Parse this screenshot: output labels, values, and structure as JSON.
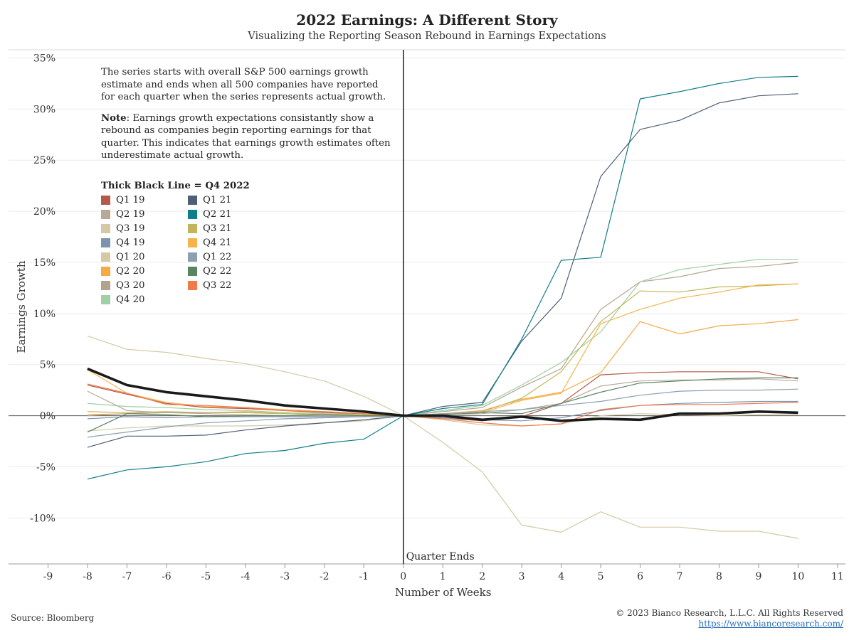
{
  "title": "2022 Earnings: A Different Story",
  "subtitle": "Visualizing the Reporting Season Rebound in Earnings Expectations",
  "note": {
    "para1": "The series starts with overall S&P 500 earnings growth estimate and ends when all 500 companies have reported for each quarter when the series represents actual growth.",
    "note_label": "Note",
    "para2": ": Earnings growth expectations consistantly show a rebound as companies begin reporting earnings for that quarter. This indicates that earnings growth estimates often underestimate actual growth."
  },
  "legend_title": "Thick Black Line = Q4 2022",
  "source": "Source: Bloomberg",
  "copyright": "© 2023 Bianco Research, L.L.C. All Rights Reserved",
  "website": "https://www.biancoresearch.com/",
  "chart_data": {
    "type": "line",
    "xlabel": "Number of Weeks",
    "ylabel": "Earnings Growth",
    "zero_label": "Quarter Ends",
    "xlim": [
      -10,
      11.2
    ],
    "ylim": [
      -14.5,
      35.8
    ],
    "x_ticks": [
      -9,
      -8,
      -7,
      -6,
      -5,
      -4,
      -3,
      -2,
      -1,
      0,
      1,
      2,
      3,
      4,
      5,
      6,
      7,
      8,
      9,
      10,
      11
    ],
    "y_ticks": [
      -10,
      -5,
      0,
      5,
      10,
      15,
      20,
      25,
      30,
      35
    ],
    "y_tick_suffix": "%",
    "legend_position": "top-left",
    "x": [
      -8,
      -7,
      -6,
      -5,
      -4,
      -3,
      -2,
      -1,
      0,
      1,
      2,
      3,
      4,
      5,
      6,
      7,
      8,
      9,
      10
    ],
    "series": [
      {
        "name": "Q1 19",
        "color": "#b5574a",
        "values": [
          3.0,
          2.1,
          1.2,
          0.8,
          0.7,
          0.5,
          0.3,
          0.2,
          0,
          -0.2,
          -0.5,
          -0.1,
          1.2,
          4.0,
          4.2,
          4.3,
          4.3,
          4.3,
          3.6
        ]
      },
      {
        "name": "Q2 19",
        "color": "#b8a898",
        "values": [
          2.4,
          0.5,
          0.3,
          0.2,
          0.1,
          0.0,
          0.0,
          0.0,
          0,
          0.1,
          0.2,
          0.6,
          1.2,
          2.9,
          3.4,
          3.5,
          3.5,
          3.6,
          3.4
        ]
      },
      {
        "name": "Q3 19",
        "color": "#d4c9a4",
        "values": [
          -1.5,
          -1.2,
          -1.0,
          -1.0,
          -1.0,
          -0.9,
          -0.7,
          -0.5,
          0,
          -0.4,
          -0.9,
          -1.0,
          -0.8,
          0.0,
          0.2,
          0.1,
          0.0,
          0.1,
          0.1
        ]
      },
      {
        "name": "Q4 19",
        "color": "#7e94ad",
        "values": [
          -0.3,
          -0.1,
          -0.2,
          -0.1,
          -0.1,
          -0.1,
          -0.1,
          -0.1,
          0,
          -0.2,
          -0.4,
          -0.5,
          -0.2,
          0.5,
          1.0,
          1.2,
          1.3,
          1.4,
          1.4
        ]
      },
      {
        "name": "Q1 20",
        "color": "#d4c9a4",
        "values": [
          7.8,
          6.5,
          6.2,
          5.6,
          5.1,
          4.3,
          3.4,
          1.9,
          0,
          -2.6,
          -5.5,
          -10.7,
          -11.4,
          -9.4,
          -10.9,
          -10.9,
          -11.3,
          -11.3,
          -12.0
        ]
      },
      {
        "name": "Q2 20",
        "color": "#f7a944",
        "values": [
          0.1,
          0.2,
          0.3,
          0.3,
          0.4,
          0.3,
          0.2,
          0.1,
          0,
          0.2,
          0.5,
          1.6,
          2.3,
          4.2,
          9.2,
          8.0,
          8.8,
          9.0,
          9.4
        ]
      },
      {
        "name": "Q3 20",
        "color": "#b4a38c",
        "values": [
          0.0,
          0.2,
          0.3,
          0.3,
          0.3,
          0.2,
          0.1,
          0.0,
          0,
          0.4,
          0.8,
          2.8,
          4.6,
          10.4,
          13.1,
          13.6,
          14.4,
          14.6,
          15.0
        ]
      },
      {
        "name": "Q4 20",
        "color": "#9fcfa4",
        "values": [
          1.2,
          0.9,
          0.8,
          0.6,
          0.5,
          0.3,
          0.2,
          0.1,
          0,
          0.5,
          1.0,
          3.0,
          5.2,
          8.2,
          13.1,
          14.3,
          14.8,
          15.3,
          15.3
        ]
      },
      {
        "name": "Q1 21",
        "color": "#4e5f78",
        "values": [
          -3.1,
          -2.0,
          -2.0,
          -1.9,
          -1.4,
          -1.0,
          -0.7,
          -0.4,
          0,
          0.9,
          1.3,
          7.3,
          11.5,
          23.4,
          28.0,
          28.9,
          30.6,
          31.3,
          31.5
        ]
      },
      {
        "name": "Q2 21",
        "color": "#0e7e88",
        "values": [
          -6.2,
          -5.3,
          -5.0,
          -4.5,
          -3.7,
          -3.4,
          -2.7,
          -2.3,
          0,
          0.7,
          1.1,
          7.5,
          15.2,
          15.5,
          31.0,
          31.7,
          32.5,
          33.1,
          33.2
        ]
      },
      {
        "name": "Q3 21",
        "color": "#c0b659",
        "values": [
          0.4,
          0.3,
          0.4,
          0.3,
          0.3,
          0.2,
          0.1,
          0.1,
          0,
          0.2,
          0.4,
          1.7,
          4.3,
          9.2,
          12.2,
          12.1,
          12.6,
          12.7,
          12.9
        ]
      },
      {
        "name": "Q4 21",
        "color": "#f7b24a",
        "values": [
          4.5,
          2.2,
          1.3,
          0.9,
          0.8,
          0.6,
          0.4,
          0.2,
          0,
          0.1,
          0.3,
          1.5,
          2.2,
          9.0,
          10.4,
          11.5,
          12.1,
          12.8,
          12.9
        ]
      },
      {
        "name": "Q1 22",
        "color": "#8ba0b1",
        "values": [
          -2.1,
          -1.6,
          -1.1,
          -0.7,
          -0.5,
          -0.3,
          -0.2,
          -0.1,
          0,
          0.2,
          0.4,
          0.6,
          1.0,
          1.4,
          2.0,
          2.4,
          2.5,
          2.5,
          2.6
        ]
      },
      {
        "name": "Q2 22",
        "color": "#5b8461",
        "values": [
          -1.6,
          0.2,
          0.1,
          -0.1,
          0.0,
          0.0,
          0.1,
          0.0,
          0,
          0.1,
          0.3,
          0.2,
          1.2,
          2.3,
          3.2,
          3.4,
          3.6,
          3.7,
          3.7
        ]
      },
      {
        "name": "Q3 22",
        "color": "#f07a48",
        "values": [
          3.1,
          2.2,
          1.1,
          1.0,
          0.8,
          0.5,
          0.4,
          0.2,
          0,
          -0.3,
          -0.7,
          -1.0,
          -0.8,
          0.6,
          1.0,
          1.1,
          1.1,
          1.2,
          1.3
        ]
      },
      {
        "name": "Q4 2022",
        "color": "#1a1a1a",
        "thick": true,
        "values": [
          4.6,
          3.0,
          2.3,
          1.9,
          1.5,
          1.0,
          0.7,
          0.4,
          0,
          0.0,
          -0.4,
          -0.1,
          -0.5,
          -0.3,
          -0.4,
          0.2,
          0.2,
          0.4,
          0.3
        ]
      }
    ]
  }
}
